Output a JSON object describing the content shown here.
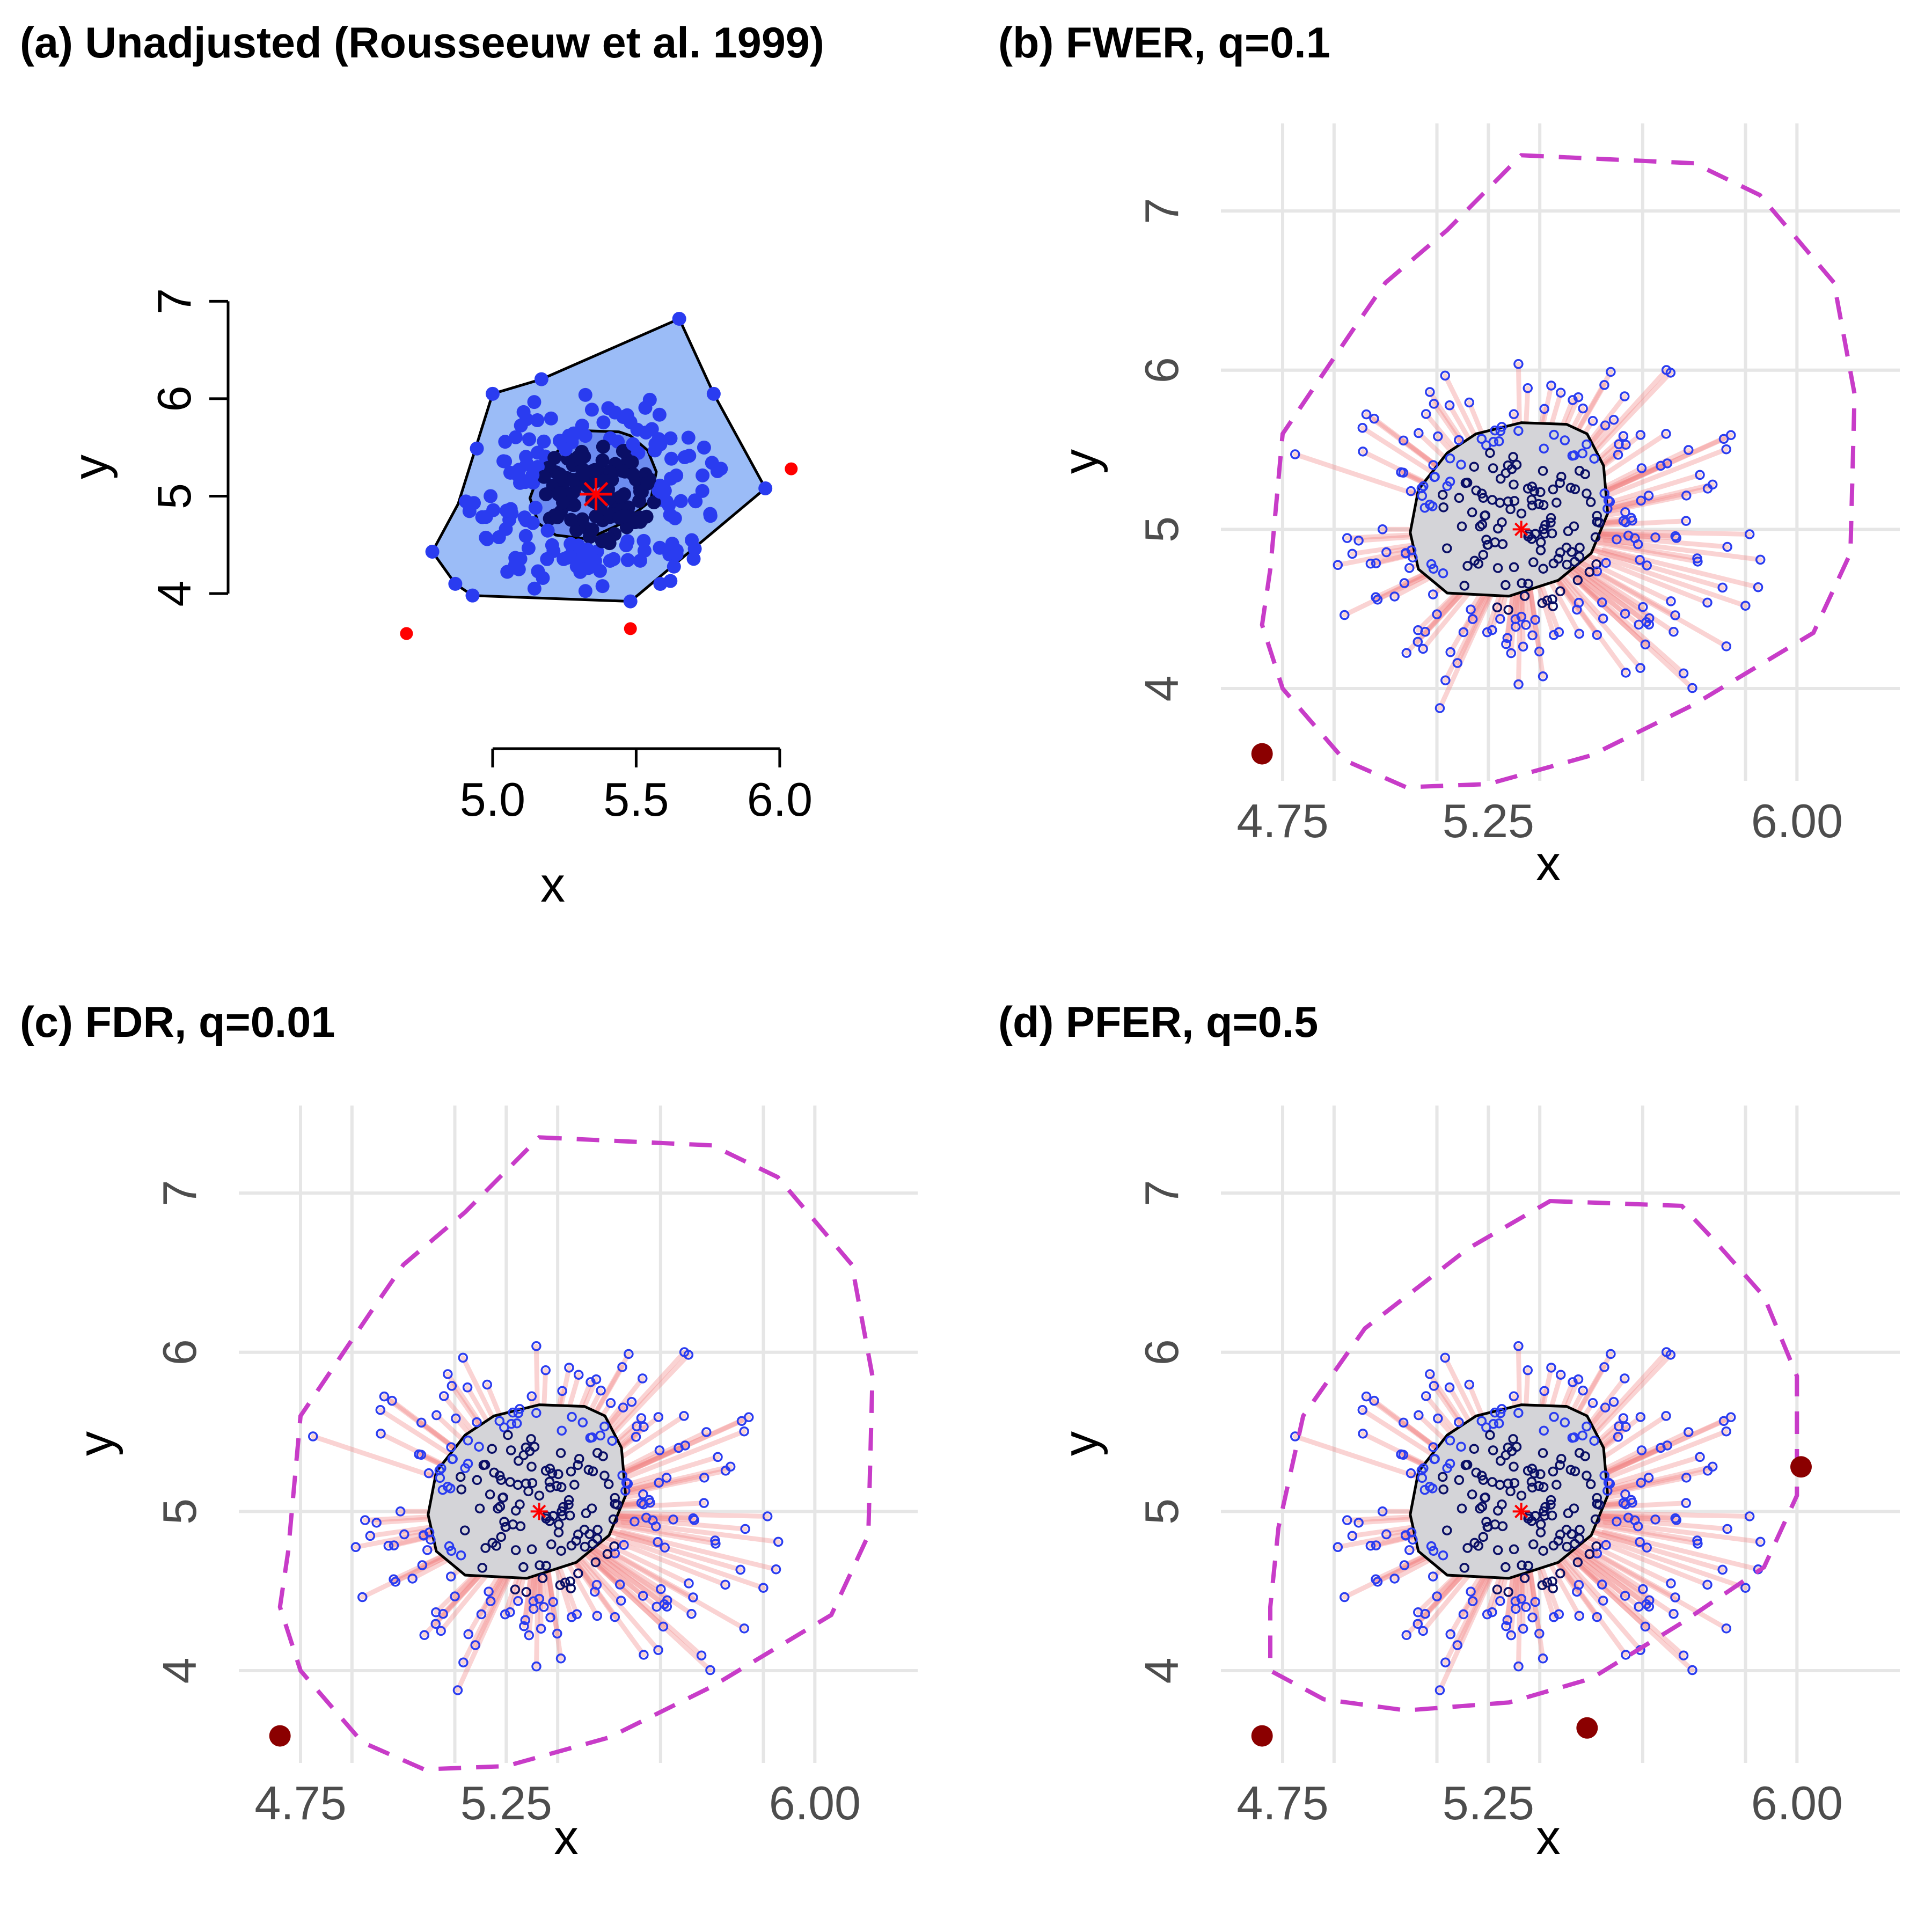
{
  "panels": {
    "a": {
      "title": "(a) Unadjusted (Rousseeuw et al. 1999)"
    },
    "b": {
      "title": "(b) FWER, q=0.1"
    },
    "c": {
      "title": "(c) FDR, q=0.01"
    },
    "d": {
      "title": "(d) PFER, q=0.5"
    }
  },
  "colors": {
    "bag": "#9bbcf7",
    "loop_outline": "#000000",
    "inner_fill": "#6d8cf0",
    "point_blue": "#2a3cf0",
    "point_dark": "#0a0f66",
    "outlier_red": "#ff0000",
    "outlier_dark": "#8b0000",
    "center_star": "#ff0000",
    "fence_dashed": "#c83cc8",
    "hull_gray": "#d4d4d8",
    "ray_pink": "#f08080",
    "grid": "#e6e6e6"
  },
  "chart_data": [
    {
      "panel": "a",
      "type": "scatter",
      "subtype": "bagplot",
      "xlabel": "x",
      "ylabel": "y",
      "xlim": [
        4.63,
        6.06
      ],
      "ylim": [
        3.4,
        7.2
      ],
      "xticks": [
        5.0,
        5.5,
        6.0
      ],
      "xtick_labels": [
        "5.0",
        "5.5",
        "6.0"
      ],
      "yticks": [
        4,
        5,
        6,
        7
      ],
      "ytick_labels": [
        "4",
        "5",
        "6",
        "7"
      ],
      "grid": false,
      "center": [
        5.36,
        5.02
      ],
      "loop_polygon": [
        [
          5.0,
          6.05
        ],
        [
          5.17,
          6.2
        ],
        [
          5.65,
          6.82
        ],
        [
          5.77,
          6.05
        ],
        [
          5.95,
          5.08
        ],
        [
          5.48,
          3.92
        ],
        [
          4.93,
          3.98
        ],
        [
          4.87,
          4.1
        ],
        [
          4.79,
          4.43
        ],
        [
          4.88,
          4.92
        ]
      ],
      "bag_polygon": [
        [
          5.33,
          5.67
        ],
        [
          5.44,
          5.66
        ],
        [
          5.48,
          5.62
        ],
        [
          5.54,
          5.47
        ],
        [
          5.57,
          5.25
        ],
        [
          5.55,
          4.95
        ],
        [
          5.45,
          4.72
        ],
        [
          5.33,
          4.56
        ],
        [
          5.22,
          4.6
        ],
        [
          5.16,
          4.72
        ],
        [
          5.13,
          4.98
        ],
        [
          5.17,
          5.3
        ],
        [
          5.24,
          5.5
        ]
      ],
      "outliers": [
        [
          4.7,
          3.59
        ],
        [
          5.48,
          3.64
        ],
        [
          6.04,
          5.28
        ]
      ]
    },
    {
      "panel": "b",
      "type": "scatter",
      "subtype": "adjusted-bagplot",
      "xlabel": "x",
      "ylabel": "y",
      "xlim": [
        4.6,
        6.25
      ],
      "ylim": [
        3.42,
        7.55
      ],
      "xticks": [
        4.75,
        5.25,
        6.0
      ],
      "xtick_labels": [
        "4.75",
        "5.25",
        "6.00"
      ],
      "yticks": [
        4,
        5,
        6,
        7
      ],
      "ytick_labels": [
        "4",
        "5",
        "6",
        "7"
      ],
      "grid": true,
      "center": [
        5.33,
        5.0
      ],
      "fence_polygon": [
        [
          5.33,
          7.35
        ],
        [
          5.75,
          7.3
        ],
        [
          5.91,
          7.1
        ],
        [
          6.09,
          6.55
        ],
        [
          6.14,
          5.85
        ],
        [
          6.13,
          4.85
        ],
        [
          6.04,
          4.35
        ],
        [
          5.75,
          3.9
        ],
        [
          5.5,
          3.58
        ],
        [
          5.25,
          3.4
        ],
        [
          5.05,
          3.38
        ],
        [
          4.9,
          3.55
        ],
        [
          4.75,
          4.0
        ],
        [
          4.7,
          4.4
        ],
        [
          4.72,
          4.75
        ],
        [
          4.75,
          5.6
        ],
        [
          4.92,
          6.25
        ],
        [
          5.0,
          6.55
        ],
        [
          5.15,
          6.88
        ]
      ],
      "outliers": [
        [
          4.7,
          3.59
        ]
      ]
    },
    {
      "panel": "c",
      "type": "scatter",
      "subtype": "adjusted-bagplot",
      "xlabel": "x",
      "ylabel": "y",
      "xlim": [
        4.6,
        6.25
      ],
      "ylim": [
        3.42,
        7.55
      ],
      "xticks": [
        4.75,
        5.25,
        6.0
      ],
      "xtick_labels": [
        "4.75",
        "5.25",
        "6.00"
      ],
      "yticks": [
        4,
        5,
        6,
        7
      ],
      "ytick_labels": [
        "4",
        "5",
        "6",
        "7"
      ],
      "grid": true,
      "center": [
        5.33,
        5.0
      ],
      "fence_polygon": [
        [
          5.33,
          7.35
        ],
        [
          5.75,
          7.3
        ],
        [
          5.91,
          7.1
        ],
        [
          6.09,
          6.55
        ],
        [
          6.14,
          5.85
        ],
        [
          6.13,
          4.85
        ],
        [
          6.04,
          4.35
        ],
        [
          5.75,
          3.9
        ],
        [
          5.5,
          3.58
        ],
        [
          5.25,
          3.4
        ],
        [
          5.05,
          3.38
        ],
        [
          4.9,
          3.55
        ],
        [
          4.75,
          4.0
        ],
        [
          4.7,
          4.4
        ],
        [
          4.72,
          4.75
        ],
        [
          4.75,
          5.6
        ],
        [
          4.92,
          6.25
        ],
        [
          5.0,
          6.55
        ],
        [
          5.15,
          6.88
        ]
      ],
      "outliers": [
        [
          4.7,
          3.59
        ]
      ]
    },
    {
      "panel": "d",
      "type": "scatter",
      "subtype": "adjusted-bagplot",
      "xlabel": "x",
      "ylabel": "y",
      "xlim": [
        4.6,
        6.25
      ],
      "ylim": [
        3.42,
        7.55
      ],
      "xticks": [
        4.75,
        5.25,
        6.0
      ],
      "xtick_labels": [
        "4.75",
        "5.25",
        "6.00"
      ],
      "yticks": [
        4,
        5,
        6,
        7
      ],
      "ytick_labels": [
        "4",
        "5",
        "6",
        "7"
      ],
      "grid": true,
      "center": [
        5.33,
        5.0
      ],
      "fence_polygon": [
        [
          5.4,
          6.95
        ],
        [
          5.72,
          6.92
        ],
        [
          5.8,
          6.7
        ],
        [
          5.92,
          6.35
        ],
        [
          6.0,
          5.85
        ],
        [
          6.0,
          5.1
        ],
        [
          5.92,
          4.65
        ],
        [
          5.72,
          4.3
        ],
        [
          5.5,
          3.95
        ],
        [
          5.3,
          3.8
        ],
        [
          5.05,
          3.75
        ],
        [
          4.85,
          3.82
        ],
        [
          4.72,
          4.0
        ],
        [
          4.72,
          4.4
        ],
        [
          4.74,
          4.9
        ],
        [
          4.8,
          5.6
        ],
        [
          4.95,
          6.15
        ],
        [
          5.2,
          6.65
        ]
      ],
      "outliers": [
        [
          4.7,
          3.59
        ],
        [
          5.49,
          3.64
        ],
        [
          6.01,
          5.28
        ]
      ]
    }
  ]
}
